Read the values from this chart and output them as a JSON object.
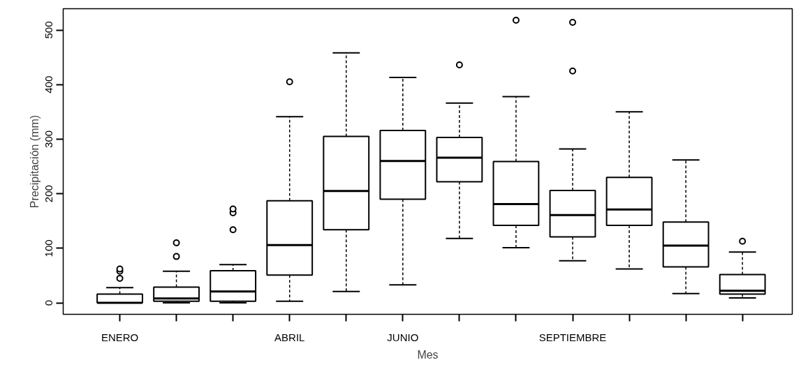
{
  "chart_data": {
    "type": "box",
    "xlabel": "Mes",
    "ylabel": "Precipitación (mm)",
    "categories": [
      "ENERO",
      null,
      null,
      "ABRIL",
      null,
      "JUNIO",
      null,
      null,
      "SEPTIEMBRE",
      null,
      null,
      null
    ],
    "boxes": [
      {
        "low": 0,
        "q1": 0,
        "median": 0,
        "q3": 16,
        "high": 28,
        "outliers": [
          45,
          58,
          62
        ]
      },
      {
        "low": 0,
        "q1": 3,
        "median": 8,
        "q3": 29,
        "high": 58,
        "outliers": [
          85,
          110
        ]
      },
      {
        "low": 0,
        "q1": 3,
        "median": 21,
        "q3": 59,
        "high": 70,
        "outliers": [
          134,
          165,
          172
        ]
      },
      {
        "low": 3,
        "q1": 51,
        "median": 106,
        "q3": 187,
        "high": 341,
        "outliers": [
          405
        ]
      },
      {
        "low": 21,
        "q1": 134,
        "median": 205,
        "q3": 305,
        "high": 458
      },
      {
        "low": 33,
        "q1": 190,
        "median": 260,
        "q3": 316,
        "high": 413
      },
      {
        "low": 118,
        "q1": 222,
        "median": 266,
        "q3": 303,
        "high": 366,
        "outliers": [
          436
        ]
      },
      {
        "low": 101,
        "q1": 142,
        "median": 181,
        "q3": 259,
        "high": 378,
        "outliers": [
          518
        ]
      },
      {
        "low": 77,
        "q1": 121,
        "median": 161,
        "q3": 206,
        "high": 282,
        "outliers": [
          425,
          514
        ]
      },
      {
        "low": 62,
        "q1": 142,
        "median": 171,
        "q3": 230,
        "high": 350
      },
      {
        "low": 17,
        "q1": 66,
        "median": 105,
        "q3": 148,
        "high": 262
      },
      {
        "low": 9,
        "q1": 16,
        "median": 22,
        "q3": 52,
        "high": 93,
        "outliers": [
          113
        ]
      }
    ],
    "color": "#000000",
    "ylim": [
      -21,
      539
    ],
    "yticks": [
      0,
      100,
      200,
      300,
      400,
      500
    ],
    "grid": false,
    "marker": "circle",
    "line_style": "dashed"
  }
}
